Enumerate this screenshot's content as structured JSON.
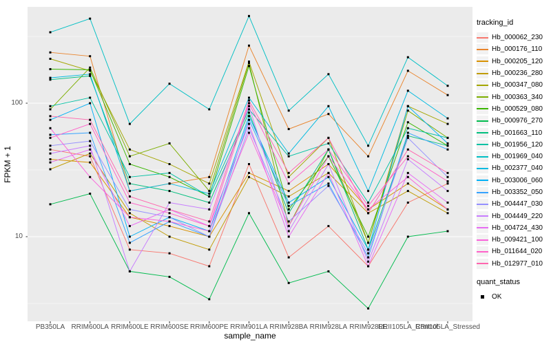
{
  "figure": {
    "background": "#FFFFFF",
    "panel_background": "#EBEBEB",
    "gridline_color": "#FFFFFF",
    "axis_text_color": "#4D4D4D",
    "tick_mark_color": "#333333",
    "point_color": "#000000"
  },
  "chart_data": {
    "type": "line",
    "title": "",
    "xlabel": "sample_name",
    "ylabel": "FPKM + 1",
    "y_scale": "log10",
    "ylim": [
      2.3,
      530
    ],
    "grid": true,
    "legend_position": "right",
    "y_ticks": [
      {
        "label": "100",
        "value": 100
      },
      {
        "label": "10",
        "value": 10
      }
    ],
    "y_minor_breaks": [
      316.2,
      31.62,
      3.162
    ],
    "categories": [
      "PB350LA",
      "RRIM600LA",
      "RRIM600LE",
      "RRIM600SE",
      "RRIM600PE",
      "RRIM901LA",
      "RRIM928BA",
      "RRIM928LA",
      "RRIM928LE",
      "RRII105LA_Control",
      "RRII105LA_Stressed"
    ],
    "point_marker": {
      "shape": "square",
      "color": "#000000",
      "size": 3
    },
    "series": [
      {
        "name": "Hb_000062_230",
        "color": "#F8766D",
        "values": [
          45,
          40,
          8,
          7.5,
          6,
          35,
          7,
          12,
          6,
          18,
          25
        ]
      },
      {
        "name": "Hb_000176_110",
        "color": "#E9842C",
        "values": [
          240,
          225,
          22,
          25,
          28,
          270,
          64,
          83,
          40,
          175,
          115
        ]
      },
      {
        "name": "Hb_000205_120",
        "color": "#D89000",
        "values": [
          38,
          36,
          14,
          12,
          10,
          30,
          22,
          35,
          16,
          25,
          16
        ]
      },
      {
        "name": "Hb_000236_280",
        "color": "#C09B00",
        "values": [
          32,
          42,
          15,
          10,
          8,
          28,
          20,
          30,
          15,
          22,
          15
        ]
      },
      {
        "name": "Hb_000347_080",
        "color": "#A3A500",
        "values": [
          215,
          175,
          45,
          35,
          25,
          205,
          28,
          55,
          9,
          95,
          70
        ]
      },
      {
        "name": "Hb_000363_340",
        "color": "#7CAE00",
        "values": [
          90,
          185,
          40,
          50,
          22,
          200,
          12,
          45,
          9,
          88,
          55
        ]
      },
      {
        "name": "Hb_000529_080",
        "color": "#39B600",
        "values": [
          180,
          178,
          35,
          28,
          20,
          190,
          16,
          40,
          10,
          72,
          48
        ]
      },
      {
        "name": "Hb_000976_270",
        "color": "#00BB4E",
        "values": [
          17.5,
          21,
          5.5,
          5,
          3.4,
          15,
          4.5,
          5.5,
          2.9,
          10,
          11
        ]
      },
      {
        "name": "Hb_001663_110",
        "color": "#00BF7D",
        "values": [
          150,
          160,
          25,
          22,
          18,
          85,
          15,
          45,
          8,
          57,
          48
        ]
      },
      {
        "name": "Hb_001956_120",
        "color": "#00C1A3",
        "values": [
          95,
          110,
          28,
          30,
          20,
          90,
          40,
          50,
          18,
          65,
          55
        ]
      },
      {
        "name": "Hb_001969_040",
        "color": "#00BFC4",
        "values": [
          340,
          430,
          70,
          140,
          90,
          450,
          88,
          165,
          48,
          221,
          135
        ]
      },
      {
        "name": "Hb_002377_040",
        "color": "#00BAE0",
        "values": [
          155,
          165,
          22,
          25,
          21,
          110,
          42,
          95,
          22,
          124,
          77
        ]
      },
      {
        "name": "Hb_003006_060",
        "color": "#00B0F6",
        "values": [
          75,
          100,
          10,
          14,
          11,
          80,
          18,
          28,
          8,
          95,
          50
        ]
      },
      {
        "name": "Hb_003352_050",
        "color": "#35A2FF",
        "values": [
          58,
          60,
          9,
          13,
          10,
          75,
          17,
          25,
          7,
          60,
          45
        ]
      },
      {
        "name": "Hb_004447_030",
        "color": "#9590FF",
        "values": [
          48,
          52,
          16,
          14,
          10,
          65,
          13,
          24,
          7.5,
          55,
          28
        ]
      },
      {
        "name": "Hb_004449_220",
        "color": "#C77CFF",
        "values": [
          42,
          48,
          5.5,
          18,
          16,
          95,
          11,
          35,
          6.5,
          38,
          22
        ]
      },
      {
        "name": "Hb_004724_430",
        "color": "#E76BF3",
        "values": [
          36,
          45,
          12,
          16,
          12,
          70,
          10,
          30,
          6,
          30,
          18
        ]
      },
      {
        "name": "Hb_009421_100",
        "color": "#FA62DB",
        "values": [
          65,
          28,
          14,
          13,
          11,
          60,
          12,
          40,
          16,
          28,
          16
        ]
      },
      {
        "name": "Hb_011644_020",
        "color": "#FF61C9",
        "values": [
          55,
          70,
          18,
          15,
          12,
          100,
          25,
          45,
          17,
          40,
          26
        ]
      },
      {
        "name": "Hb_012977_010",
        "color": "#FF65AE",
        "values": [
          80,
          75,
          20,
          16,
          13,
          105,
          30,
          55,
          15,
          45,
          30
        ]
      }
    ],
    "legend": {
      "tracking_title": "tracking_id",
      "quant_title": "quant_status",
      "quant_items": [
        {
          "label": "OK",
          "marker": "black-square"
        }
      ]
    }
  }
}
